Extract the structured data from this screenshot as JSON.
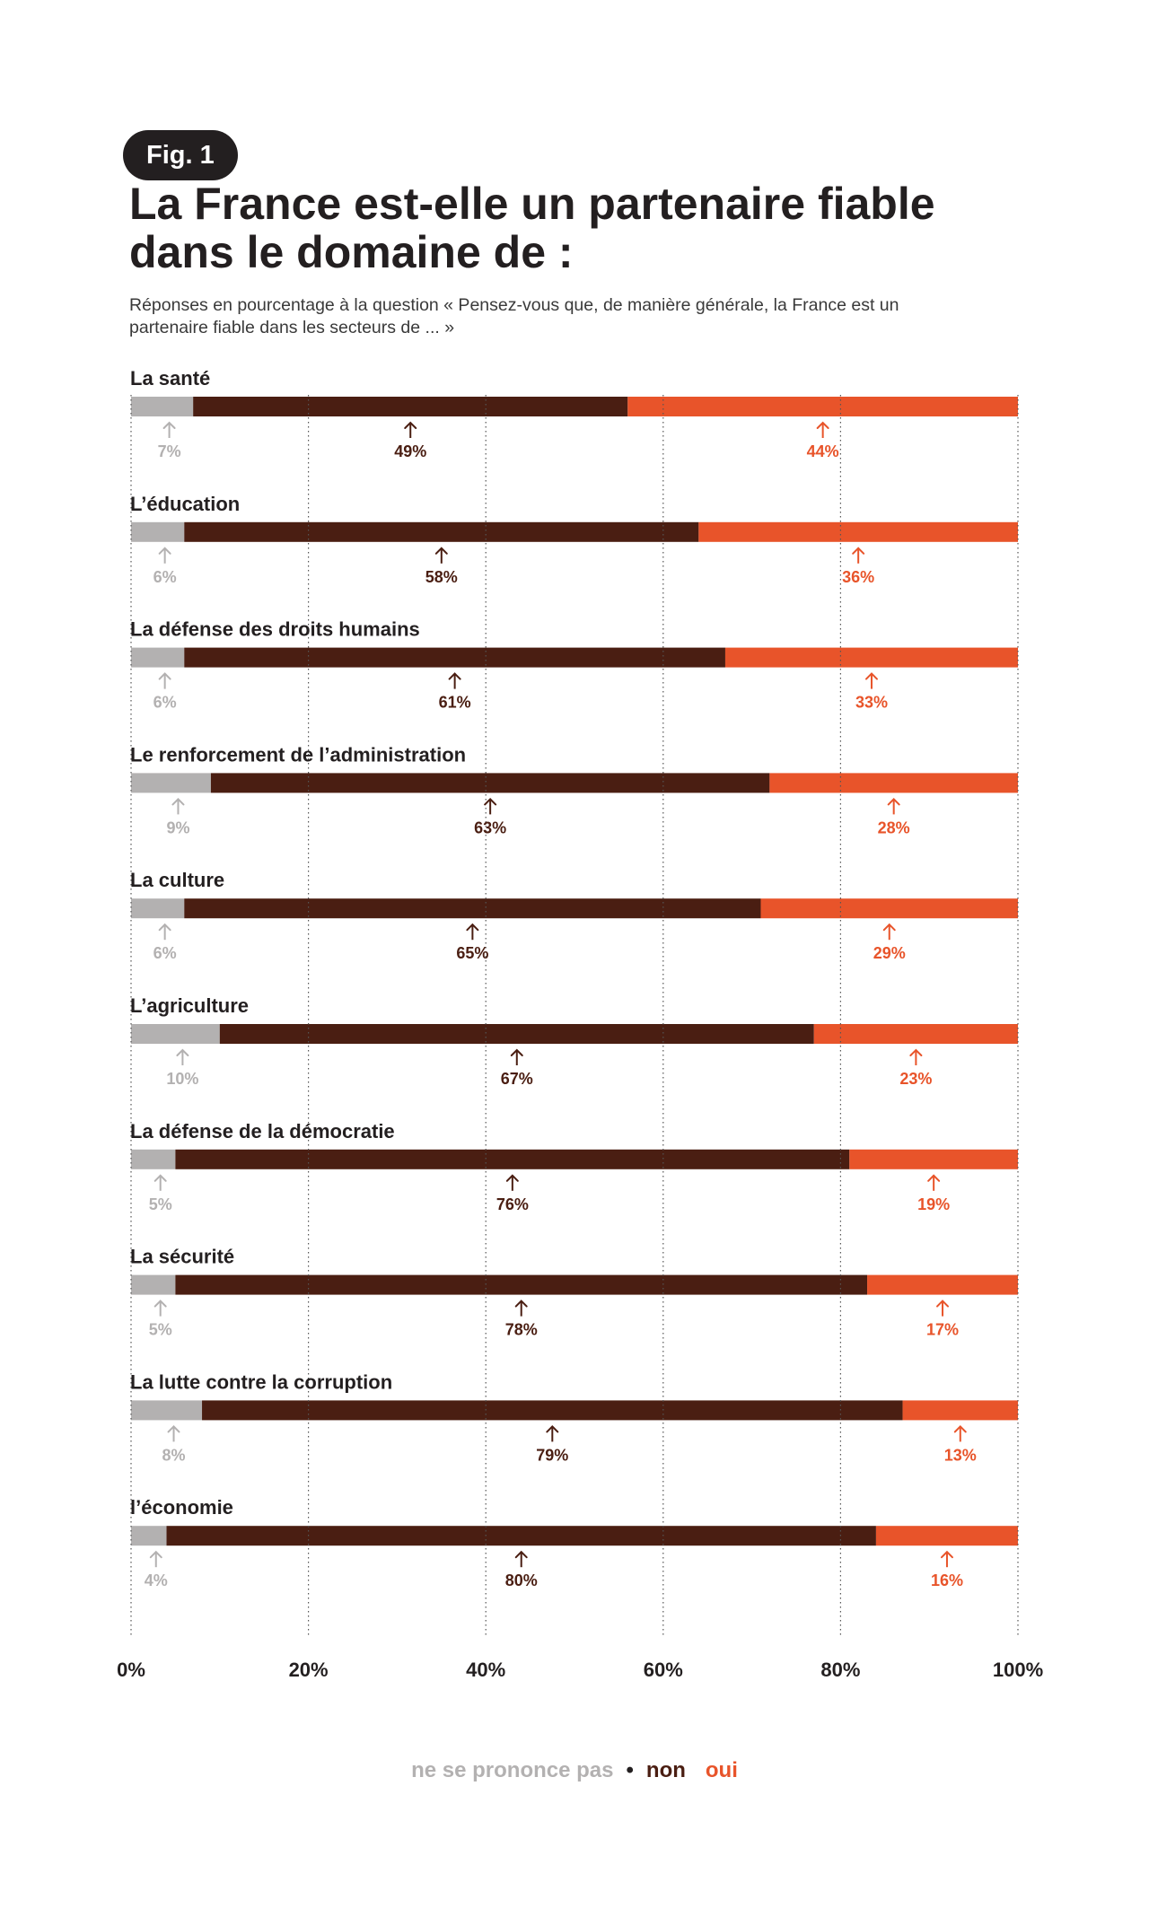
{
  "figure": {
    "badge": "Fig. 1",
    "title": "La France est-elle un partenaire fiable dans le domaine de :",
    "subtitle": "Réponses en pourcentage à la question « Pensez-vous que, de manière générale, la France est un partenaire fiable dans les secteurs de ... »"
  },
  "legend": {
    "no_opinion": "ne se prononce pas",
    "separator": "•",
    "no": "non",
    "yes": "oui"
  },
  "colors": {
    "no_opinion": "#b3b1b1",
    "no": "#4a1e12",
    "yes": "#e8542a",
    "text": "#231f20",
    "grid": "#555555"
  },
  "chart_data": {
    "type": "bar",
    "orientation": "horizontal-stacked-100",
    "categories": [
      "La santé",
      "L’éducation",
      "La défense des droits humains",
      "Le renforcement de l’administration",
      "La culture",
      "L’agriculture",
      "La défense de la démocratie",
      "La sécurité",
      "La lutte contre la corruption",
      "l’économie"
    ],
    "series": [
      {
        "name": "ne se prononce pas",
        "values": [
          7,
          6,
          6,
          9,
          6,
          10,
          5,
          5,
          8,
          4
        ]
      },
      {
        "name": "non",
        "values": [
          49,
          58,
          61,
          63,
          65,
          67,
          76,
          78,
          79,
          80
        ]
      },
      {
        "name": "oui",
        "values": [
          44,
          36,
          33,
          28,
          29,
          23,
          19,
          17,
          13,
          16
        ]
      }
    ],
    "value_suffix": "%",
    "xlim": [
      0,
      100
    ],
    "xticks": [
      0,
      20,
      40,
      60,
      80,
      100
    ],
    "xtick_labels": [
      "0%",
      "20%",
      "40%",
      "60%",
      "80%",
      "100%"
    ],
    "grid": "vertical-dotted",
    "legend_position": "bottom-center"
  }
}
